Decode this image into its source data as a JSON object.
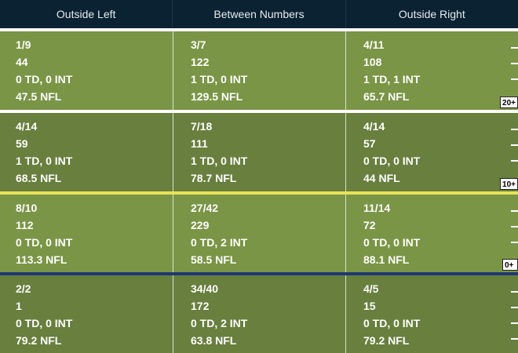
{
  "columns": [
    "Outside Left",
    "Between Numbers",
    "Outside Right"
  ],
  "zones": [
    {
      "yard_label": "20+",
      "cells": [
        {
          "completions": "1/9",
          "yards": "44",
          "td_int": "0 TD, 0 INT",
          "rating": "47.5 NFL"
        },
        {
          "completions": "3/7",
          "yards": "122",
          "td_int": "1 TD, 0 INT",
          "rating": "129.5 NFL"
        },
        {
          "completions": "4/11",
          "yards": "108",
          "td_int": "1 TD, 1 INT",
          "rating": "65.7 NFL"
        }
      ]
    },
    {
      "yard_label": "10+",
      "cells": [
        {
          "completions": "4/14",
          "yards": "59",
          "td_int": "1 TD, 0 INT",
          "rating": "68.5 NFL"
        },
        {
          "completions": "7/18",
          "yards": "111",
          "td_int": "1 TD, 0 INT",
          "rating": "78.7 NFL"
        },
        {
          "completions": "4/14",
          "yards": "57",
          "td_int": "0 TD, 0 INT",
          "rating": "44 NFL"
        }
      ]
    },
    {
      "yard_label": "0+",
      "cells": [
        {
          "completions": "8/10",
          "yards": "112",
          "td_int": "0 TD, 0 INT",
          "rating": "113.3 NFL"
        },
        {
          "completions": "27/42",
          "yards": "229",
          "td_int": "0 TD, 2 INT",
          "rating": "58.5 NFL"
        },
        {
          "completions": "11/14",
          "yards": "72",
          "td_int": "0 TD, 0 INT",
          "rating": "88.1 NFL"
        }
      ]
    },
    {
      "yard_label": "",
      "cells": [
        {
          "completions": "2/2",
          "yards": "1",
          "td_int": "0 TD, 0 INT",
          "rating": "79.2 NFL"
        },
        {
          "completions": "34/40",
          "yards": "172",
          "td_int": "0 TD, 2 INT",
          "rating": "63.8 NFL"
        },
        {
          "completions": "4/5",
          "yards": "15",
          "td_int": "0 TD, 0 INT",
          "rating": "79.2 NFL"
        }
      ]
    }
  ],
  "colors": {
    "header_bg": "#0b2233",
    "field_light": "#7a9545",
    "field_dark": "#687f3d",
    "line_of_scrimmage": "#1f3772",
    "first_down_line": "#e7e35a"
  }
}
